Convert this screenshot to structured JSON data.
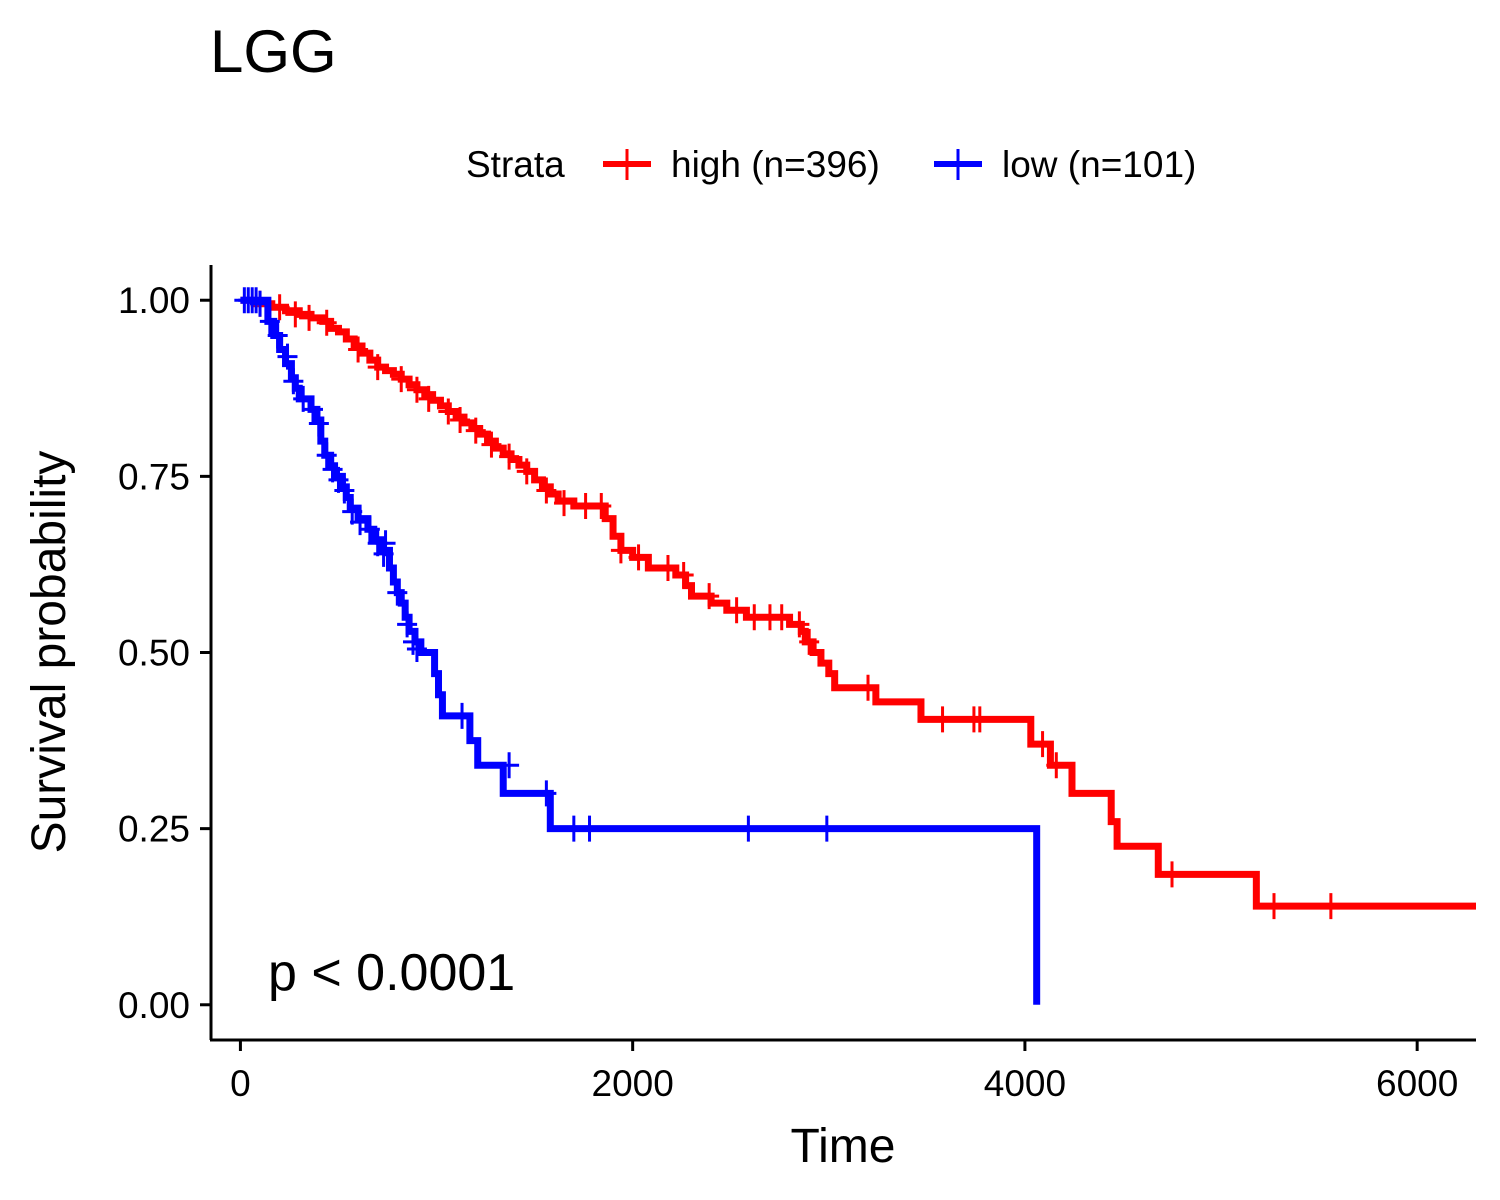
{
  "chart_data": {
    "type": "line",
    "subtype": "kaplan-meier step curve with censor marks",
    "title": "LGG",
    "xlabel": "Time",
    "ylabel": "Survival probability",
    "xlim": [
      -150,
      6300
    ],
    "ylim": [
      -0.05,
      1.05
    ],
    "xticks": [
      0,
      2000,
      4000,
      6000
    ],
    "xtick_labels": [
      "0",
      "2000",
      "4000",
      "6000"
    ],
    "yticks": [
      0,
      0.25,
      0.5,
      0.75,
      1
    ],
    "ytick_labels": [
      "0.00",
      "0.25",
      "0.50",
      "0.75",
      "1.00"
    ],
    "grid": false,
    "legend": {
      "title": "Strata",
      "position": "top",
      "entries": [
        "high (n=396)",
        "low (n=101)"
      ]
    },
    "annotation": "p < 0.0001",
    "series": [
      {
        "name": "high (n=396)",
        "color": "#ff0000",
        "steps": [
          [
            0,
            1.0
          ],
          [
            70,
            0.995
          ],
          [
            160,
            0.99
          ],
          [
            230,
            0.985
          ],
          [
            300,
            0.98
          ],
          [
            360,
            0.975
          ],
          [
            420,
            0.97
          ],
          [
            460,
            0.96
          ],
          [
            500,
            0.955
          ],
          [
            540,
            0.945
          ],
          [
            580,
            0.935
          ],
          [
            620,
            0.925
          ],
          [
            660,
            0.915
          ],
          [
            700,
            0.905
          ],
          [
            740,
            0.9
          ],
          [
            780,
            0.895
          ],
          [
            820,
            0.888
          ],
          [
            860,
            0.88
          ],
          [
            900,
            0.873
          ],
          [
            940,
            0.866
          ],
          [
            980,
            0.858
          ],
          [
            1020,
            0.85
          ],
          [
            1060,
            0.842
          ],
          [
            1100,
            0.834
          ],
          [
            1140,
            0.826
          ],
          [
            1180,
            0.818
          ],
          [
            1220,
            0.81
          ],
          [
            1260,
            0.8
          ],
          [
            1300,
            0.79
          ],
          [
            1340,
            0.782
          ],
          [
            1380,
            0.774
          ],
          [
            1420,
            0.766
          ],
          [
            1460,
            0.757
          ],
          [
            1500,
            0.745
          ],
          [
            1540,
            0.735
          ],
          [
            1580,
            0.725
          ],
          [
            1620,
            0.715
          ],
          [
            1700,
            0.708
          ],
          [
            1860,
            0.69
          ],
          [
            1900,
            0.665
          ],
          [
            1940,
            0.645
          ],
          [
            2000,
            0.635
          ],
          [
            2080,
            0.62
          ],
          [
            2220,
            0.61
          ],
          [
            2270,
            0.595
          ],
          [
            2300,
            0.58
          ],
          [
            2400,
            0.57
          ],
          [
            2480,
            0.56
          ],
          [
            2580,
            0.55
          ],
          [
            2800,
            0.54
          ],
          [
            2860,
            0.53
          ],
          [
            2880,
            0.515
          ],
          [
            2920,
            0.5
          ],
          [
            2960,
            0.485
          ],
          [
            3000,
            0.47
          ],
          [
            3030,
            0.45
          ],
          [
            3240,
            0.43
          ],
          [
            3470,
            0.405
          ],
          [
            4030,
            0.37
          ],
          [
            4130,
            0.34
          ],
          [
            4240,
            0.3
          ],
          [
            4440,
            0.26
          ],
          [
            4470,
            0.225
          ],
          [
            4680,
            0.185
          ],
          [
            5180,
            0.14
          ],
          [
            6300,
            0.14
          ]
        ],
        "censored": [
          [
            100,
            0.995
          ],
          [
            200,
            0.99
          ],
          [
            280,
            0.98
          ],
          [
            350,
            0.975
          ],
          [
            440,
            0.968
          ],
          [
            600,
            0.93
          ],
          [
            700,
            0.905
          ],
          [
            820,
            0.888
          ],
          [
            900,
            0.873
          ],
          [
            960,
            0.86
          ],
          [
            1060,
            0.842
          ],
          [
            1120,
            0.83
          ],
          [
            1200,
            0.815
          ],
          [
            1280,
            0.795
          ],
          [
            1370,
            0.778
          ],
          [
            1460,
            0.757
          ],
          [
            1560,
            0.73
          ],
          [
            1650,
            0.712
          ],
          [
            1760,
            0.708
          ],
          [
            1840,
            0.708
          ],
          [
            1940,
            0.645
          ],
          [
            2030,
            0.635
          ],
          [
            2180,
            0.62
          ],
          [
            2260,
            0.61
          ],
          [
            2390,
            0.58
          ],
          [
            2530,
            0.56
          ],
          [
            2620,
            0.55
          ],
          [
            2700,
            0.55
          ],
          [
            2760,
            0.55
          ],
          [
            2850,
            0.54
          ],
          [
            2900,
            0.515
          ],
          [
            3200,
            0.45
          ],
          [
            3580,
            0.405
          ],
          [
            3740,
            0.405
          ],
          [
            3770,
            0.405
          ],
          [
            4090,
            0.37
          ],
          [
            4160,
            0.34
          ],
          [
            4750,
            0.185
          ],
          [
            5270,
            0.14
          ],
          [
            5560,
            0.14
          ]
        ]
      },
      {
        "name": "low (n=101)",
        "color": "#0000ff",
        "steps": [
          [
            0,
            1.0
          ],
          [
            140,
            0.97
          ],
          [
            170,
            0.95
          ],
          [
            200,
            0.93
          ],
          [
            230,
            0.91
          ],
          [
            260,
            0.89
          ],
          [
            280,
            0.875
          ],
          [
            300,
            0.86
          ],
          [
            360,
            0.845
          ],
          [
            390,
            0.83
          ],
          [
            410,
            0.8
          ],
          [
            430,
            0.78
          ],
          [
            460,
            0.765
          ],
          [
            480,
            0.75
          ],
          [
            520,
            0.735
          ],
          [
            540,
            0.72
          ],
          [
            560,
            0.705
          ],
          [
            600,
            0.69
          ],
          [
            650,
            0.675
          ],
          [
            680,
            0.66
          ],
          [
            720,
            0.645
          ],
          [
            760,
            0.62
          ],
          [
            780,
            0.6
          ],
          [
            800,
            0.585
          ],
          [
            820,
            0.57
          ],
          [
            840,
            0.55
          ],
          [
            860,
            0.53
          ],
          [
            890,
            0.515
          ],
          [
            920,
            0.5
          ],
          [
            990,
            0.47
          ],
          [
            1010,
            0.44
          ],
          [
            1030,
            0.41
          ],
          [
            1170,
            0.375
          ],
          [
            1210,
            0.34
          ],
          [
            1340,
            0.3
          ],
          [
            1580,
            0.25
          ],
          [
            4060,
            0.25
          ],
          [
            4060,
            0.0
          ]
        ],
        "censored": [
          [
            20,
            1.0
          ],
          [
            40,
            1.0
          ],
          [
            60,
            1.0
          ],
          [
            80,
            1.0
          ],
          [
            100,
            0.995
          ],
          [
            150,
            0.97
          ],
          [
            190,
            0.95
          ],
          [
            240,
            0.92
          ],
          [
            270,
            0.885
          ],
          [
            320,
            0.86
          ],
          [
            370,
            0.845
          ],
          [
            400,
            0.825
          ],
          [
            440,
            0.78
          ],
          [
            470,
            0.76
          ],
          [
            500,
            0.745
          ],
          [
            530,
            0.73
          ],
          [
            570,
            0.7
          ],
          [
            610,
            0.685
          ],
          [
            660,
            0.675
          ],
          [
            700,
            0.655
          ],
          [
            730,
            0.64
          ],
          [
            740,
            0.655
          ],
          [
            800,
            0.585
          ],
          [
            850,
            0.54
          ],
          [
            880,
            0.515
          ],
          [
            900,
            0.505
          ],
          [
            1130,
            0.41
          ],
          [
            1370,
            0.34
          ],
          [
            1560,
            0.3
          ],
          [
            1700,
            0.25
          ],
          [
            1780,
            0.25
          ],
          [
            2590,
            0.25
          ],
          [
            2990,
            0.25
          ]
        ]
      }
    ]
  }
}
